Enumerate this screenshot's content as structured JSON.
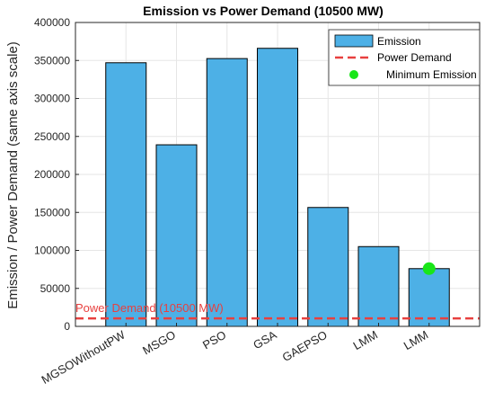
{
  "chart_data": {
    "type": "bar",
    "title": "Emission vs Power Demand (10500 MW)",
    "ylabel": "Emission / Power Demand (same axis scale)",
    "xlabel": "",
    "categories": [
      "MGSOWithoutPW",
      "MSGO",
      "PSO",
      "GSA",
      "GAEPSO",
      "LMM",
      "LMM"
    ],
    "values": [
      347000,
      239000,
      352500,
      366000,
      156500,
      105000,
      76000
    ],
    "ylim": [
      0,
      400000
    ],
    "yticks": [
      0,
      50000,
      100000,
      150000,
      200000,
      250000,
      300000,
      350000,
      400000
    ],
    "ytick_labels": [
      "0",
      "50000",
      "100000",
      "150000",
      "200000",
      "250000",
      "300000",
      "350000",
      "400000"
    ],
    "power_demand": 10500,
    "power_demand_label": "Power Demand (10500 MW)",
    "min_emission": {
      "category_index": 6,
      "value": 76000
    },
    "grid": true,
    "legend_position": "top-right",
    "legend": [
      {
        "label": "Emission",
        "kind": "bar"
      },
      {
        "label": "Power Demand",
        "kind": "dashed-line"
      },
      {
        "label": "Minimum Emission",
        "kind": "marker"
      }
    ],
    "colors": {
      "bar_fill": "#4db0e6",
      "bar_edge": "#000000",
      "demand_line": "#e8403f",
      "marker": "#19e619",
      "grid": "#e6e6e6"
    }
  }
}
